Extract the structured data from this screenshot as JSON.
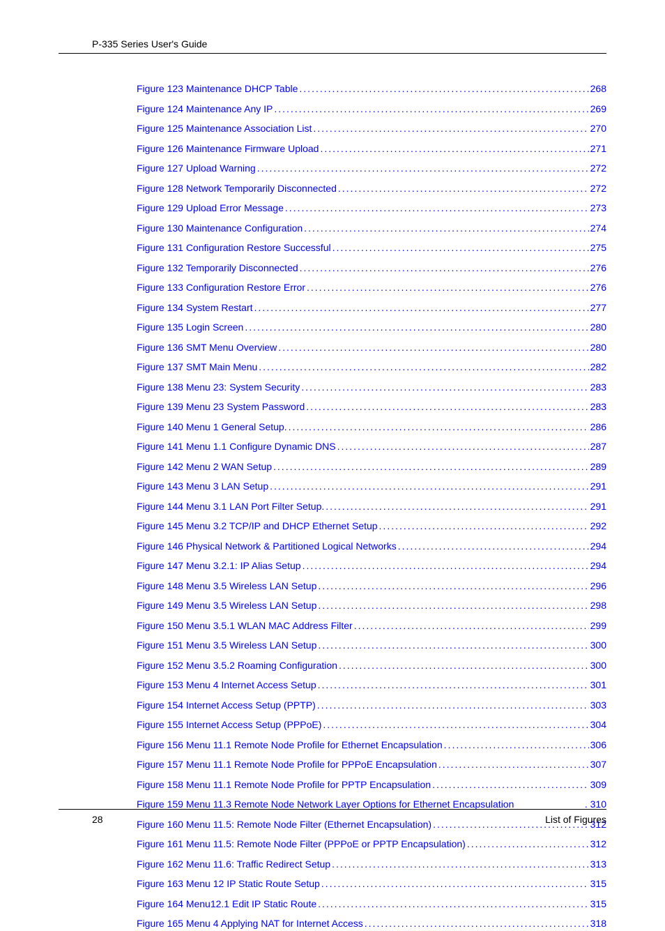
{
  "header": {
    "title": "P-335 Series User's Guide"
  },
  "footer": {
    "page_number": "28",
    "section_title": "List of Figures"
  },
  "colors": {
    "link": "#0000ff",
    "text": "#000000",
    "background": "#ffffff"
  },
  "toc": {
    "entries": [
      {
        "label": "Figure 123 Maintenance DHCP Table ",
        "page": " 268",
        "dots": true
      },
      {
        "label": "Figure 124 Maintenance Any IP ",
        "page": " 269",
        "dots": true
      },
      {
        "label": "Figure 125 Maintenance Association List  ",
        "page": " 270",
        "dots": true
      },
      {
        "label": "Figure 126 Maintenance Firmware Upload ",
        "page": " 271",
        "dots": true
      },
      {
        "label": "Figure 127 Upload Warning ",
        "page": " 272",
        "dots": true
      },
      {
        "label": "Figure 128 Network Temporarily Disconnected ",
        "page": " 272",
        "dots": true
      },
      {
        "label": "Figure 129 Upload Error Message ",
        "page": " 273",
        "dots": true
      },
      {
        "label": "Figure 130 Maintenance Configuration ",
        "page": " 274",
        "dots": true
      },
      {
        "label": "Figure 131 Configuration Restore Successful ",
        "page": " 275",
        "dots": true
      },
      {
        "label": "Figure 132 Temporarily Disconnected ",
        "page": " 276",
        "dots": true
      },
      {
        "label": "Figure 133 Configuration Restore Error ",
        "page": " 276",
        "dots": true
      },
      {
        "label": "Figure 134 System Restart ",
        "page": " 277",
        "dots": true
      },
      {
        "label": "Figure 135 Login Screen ",
        "page": " 280",
        "dots": true
      },
      {
        "label": "Figure 136 SMT Menu Overview ",
        "page": " 280",
        "dots": true
      },
      {
        "label": "Figure 137 SMT Main Menu ",
        "page": " 282",
        "dots": true
      },
      {
        "label": "Figure 138 Menu 23: System Security ",
        "page": " 283",
        "dots": true
      },
      {
        "label": "Figure 139 Menu 23 System Password ",
        "page": " 283",
        "dots": true
      },
      {
        "label": "Figure 140 Menu 1 General Setup. ",
        "page": " 286",
        "dots": true
      },
      {
        "label": "Figure 141 Menu 1.1 Configure Dynamic DNS ",
        "page": " 287",
        "dots": true
      },
      {
        "label": "Figure 142 Menu 2 WAN Setup ",
        "page": " 289",
        "dots": true
      },
      {
        "label": "Figure 143 Menu 3 LAN Setup ",
        "page": " 291",
        "dots": true
      },
      {
        "label": "Figure 144 Menu 3.1 LAN Port Filter Setup. ",
        "page": " 291",
        "dots": true
      },
      {
        "label": "Figure 145 Menu 3.2 TCP/IP and DHCP Ethernet Setup ",
        "page": " 292",
        "dots": true
      },
      {
        "label": "Figure 146 Physical Network & Partitioned Logical Networks ",
        "page": " 294",
        "dots": true
      },
      {
        "label": "Figure 147 Menu 3.2.1: IP Alias Setup ",
        "page": " 294",
        "dots": true
      },
      {
        "label": "Figure 148 Menu 3.5 Wireless LAN Setup ",
        "page": " 296",
        "dots": true
      },
      {
        "label": "Figure 149 Menu 3.5 Wireless LAN Setup ",
        "page": " 298",
        "dots": true
      },
      {
        "label": "Figure 150 Menu 3.5.1 WLAN MAC Address Filter ",
        "page": " 299",
        "dots": true
      },
      {
        "label": "Figure 151 Menu 3.5 Wireless LAN Setup ",
        "page": " 300",
        "dots": true
      },
      {
        "label": "Figure 152 Menu 3.5.2 Roaming Configuration ",
        "page": " 300",
        "dots": true
      },
      {
        "label": "Figure 153 Menu 4 Internet Access Setup ",
        "page": " 301",
        "dots": true
      },
      {
        "label": "Figure 154 Internet Access Setup (PPTP)  ",
        "page": " 303",
        "dots": true
      },
      {
        "label": "Figure 155 Internet Access Setup (PPPoE) ",
        "page": " 304",
        "dots": true
      },
      {
        "label": "Figure 156 Menu 11.1 Remote Node Profile for Ethernet Encapsulation ",
        "page": " 306",
        "dots": true
      },
      {
        "label": "Figure 157 Menu 11.1 Remote Node Profile for PPPoE Encapsulation ",
        "page": " 307",
        "dots": true
      },
      {
        "label": "Figure 158 Menu 11.1 Remote Node Profile for PPTP Encapsulation ",
        "page": " 309",
        "dots": true
      },
      {
        "label": "Figure 159 Menu 11.3 Remote Node Network Layer Options for Ethernet Encapsulation ",
        "page": ". 310",
        "dots": false
      },
      {
        "label": "Figure 160 Menu 11.5: Remote Node Filter (Ethernet Encapsulation) ",
        "page": " 312",
        "dots": true
      },
      {
        "label": "Figure 161 Menu 11.5: Remote Node Filter (PPPoE or PPTP Encapsulation) ",
        "page": " 312",
        "dots": true
      },
      {
        "label": "Figure 162  Menu 11.6: Traffic Redirect Setup ",
        "page": " 313",
        "dots": true
      },
      {
        "label": "Figure 163 Menu 12 IP Static Route Setup ",
        "page": " 315",
        "dots": true
      },
      {
        "label": "Figure 164 Menu12.1 Edit IP Static Route ",
        "page": " 315",
        "dots": true
      },
      {
        "label": "Figure 165 Menu 4 Applying NAT for Internet Access ",
        "page": " 318",
        "dots": true
      }
    ]
  }
}
